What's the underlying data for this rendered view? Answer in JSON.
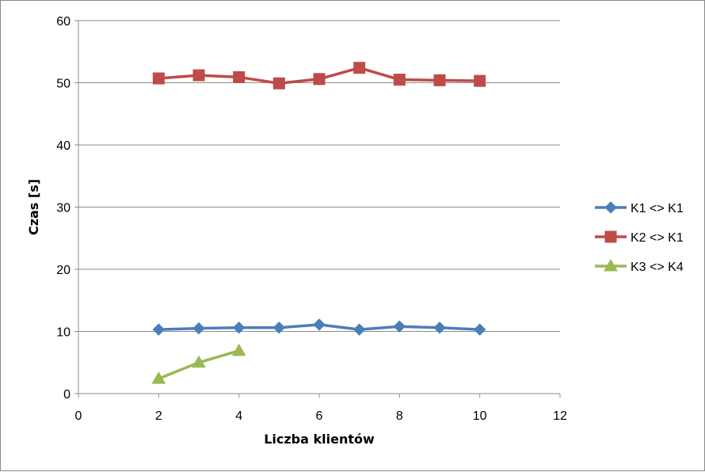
{
  "chart_data": {
    "type": "line",
    "title": "",
    "xlabel": "Liczba klientów",
    "ylabel": "Czas [s]",
    "xlim": [
      0,
      12
    ],
    "ylim": [
      0,
      60
    ],
    "x_ticks": [
      0,
      2,
      4,
      6,
      8,
      10,
      12
    ],
    "y_ticks": [
      0,
      10,
      20,
      30,
      40,
      50,
      60
    ],
    "grid": "horizontal",
    "legend_position": "right",
    "series": [
      {
        "name": "K1 <> K1",
        "color": "#4a7ebb",
        "marker": "diamond",
        "x": [
          2,
          3,
          4,
          5,
          6,
          7,
          8,
          9,
          10
        ],
        "values": [
          10.3,
          10.5,
          10.6,
          10.6,
          11.1,
          10.3,
          10.8,
          10.6,
          10.3
        ]
      },
      {
        "name": "K2 <> K1",
        "color": "#be4b48",
        "marker": "square",
        "x": [
          2,
          3,
          4,
          5,
          6,
          7,
          8,
          9,
          10
        ],
        "values": [
          50.7,
          51.2,
          50.9,
          49.9,
          50.6,
          52.4,
          50.5,
          50.4,
          50.3
        ]
      },
      {
        "name": "K3 <> K4",
        "color": "#98b954",
        "marker": "triangle",
        "x": [
          2,
          3,
          4
        ],
        "values": [
          2.4,
          5.0,
          6.9
        ]
      }
    ]
  }
}
